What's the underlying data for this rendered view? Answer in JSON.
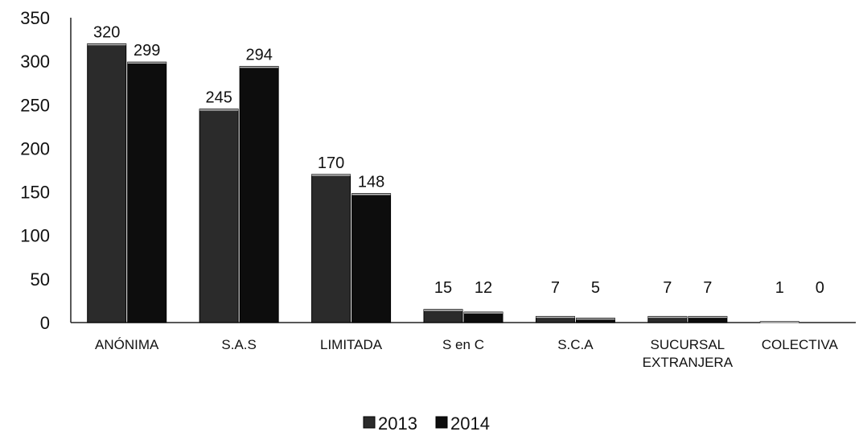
{
  "chart_data": {
    "type": "bar",
    "categories": [
      [
        "ANÓNIMA"
      ],
      [
        "S.A.S"
      ],
      [
        "LIMITADA"
      ],
      [
        "S en C"
      ],
      [
        "S.C.A"
      ],
      [
        "SUCURSAL",
        "EXTRANJERA"
      ],
      [
        "COLECTIVA"
      ]
    ],
    "series": [
      {
        "name": "2013",
        "values": [
          320,
          245,
          170,
          15,
          7,
          7,
          1
        ],
        "color": "#2b2b2b"
      },
      {
        "name": "2014",
        "values": [
          299,
          294,
          148,
          12,
          5,
          7,
          0
        ],
        "color": "#0d0d0d"
      }
    ],
    "ylim": [
      0,
      350
    ],
    "yticks": [
      0,
      50,
      100,
      150,
      200,
      250,
      300,
      350
    ],
    "grid": false,
    "legend_position": "bottom"
  }
}
